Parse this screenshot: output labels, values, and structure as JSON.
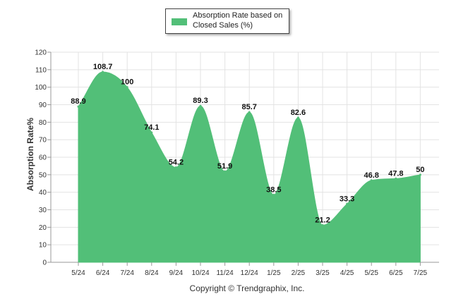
{
  "chart_data": {
    "type": "area",
    "categories": [
      "5/24",
      "6/24",
      "7/24",
      "8/24",
      "9/24",
      "10/24",
      "11/24",
      "12/24",
      "1/25",
      "2/25",
      "3/25",
      "4/25",
      "5/25",
      "6/25",
      "7/25"
    ],
    "series": [
      {
        "name": "Absorption Rate based on Closed Sales (%)",
        "values": [
          88.9,
          108.7,
          100,
          74.1,
          54.2,
          89.3,
          51.9,
          85.7,
          38.5,
          82.6,
          21.2,
          33.3,
          46.8,
          47.8,
          50
        ],
        "value_labels": [
          "88.9",
          "108.7",
          "100",
          "74.1",
          "54.2",
          "89.3",
          "51.9",
          "85.7",
          "38.5",
          "82.6",
          "21.2",
          "33.3",
          "46.8",
          "47.8",
          "50"
        ],
        "color": "#52bf78"
      }
    ],
    "ylabel": "Absorption Rate%",
    "ylim": [
      0,
      120
    ],
    "yticks": [
      0,
      10,
      20,
      30,
      40,
      50,
      60,
      70,
      80,
      90,
      100,
      110,
      120
    ],
    "grid": true,
    "legend_position": "top-center"
  },
  "legend": {
    "label": "Absorption Rate based on Closed Sales (%)"
  },
  "footer": {
    "copyright": "Copyright © Trendgraphix, Inc."
  },
  "colors": {
    "series": "#52bf78",
    "grid": "#e3e3e3",
    "axis": "#999999",
    "text": "#333333"
  }
}
